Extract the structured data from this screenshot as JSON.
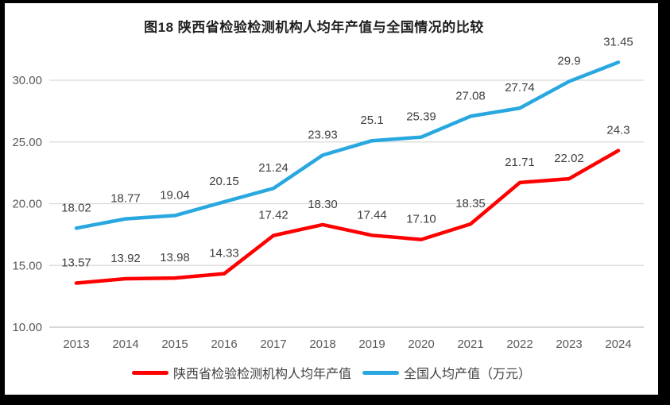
{
  "chart_data": {
    "type": "line",
    "title": "图18 陕西省检验检测机构人均年产值与全国情况的比较",
    "categories": [
      "2013",
      "2014",
      "2015",
      "2016",
      "2017",
      "2018",
      "2019",
      "2020",
      "2021",
      "2022",
      "2023",
      "2024"
    ],
    "series": [
      {
        "name": "陕西省检验检测机构人均年产值",
        "color": "#ff0000",
        "values": [
          13.57,
          13.92,
          13.98,
          14.33,
          17.42,
          18.3,
          17.44,
          17.1,
          18.35,
          21.71,
          22.02,
          24.3
        ],
        "labels": [
          "13.57",
          "13.92",
          "13.98",
          "14.33",
          "17.42",
          "18.30",
          "17.44",
          "17.10",
          "18.35",
          "21.71",
          "22.02",
          "24.3"
        ]
      },
      {
        "name": "全国人均产值（万元）",
        "color": "#29a8e0",
        "values": [
          18.02,
          18.77,
          19.04,
          20.15,
          21.24,
          23.93,
          25.1,
          25.39,
          27.08,
          27.74,
          29.9,
          31.45
        ],
        "labels": [
          "18.02",
          "18.77",
          "19.04",
          "20.15",
          "21.24",
          "23.93",
          "25.1",
          "25.39",
          "27.08",
          "27.74",
          "29.9",
          "31.45"
        ]
      }
    ],
    "y_ticks": [
      "10.00",
      "15.00",
      "20.00",
      "25.00",
      "30.00"
    ],
    "ylim": [
      10,
      32.5
    ],
    "grid": true,
    "legend_position": "bottom",
    "colors": {
      "gridline": "#d9d9d9",
      "axis_line": "#bfbfbf",
      "tick_label": "#595959",
      "data_label": "#404040",
      "title": "#1f1f1f",
      "page_background": "#ffffff",
      "frame_background": "#000000"
    }
  }
}
